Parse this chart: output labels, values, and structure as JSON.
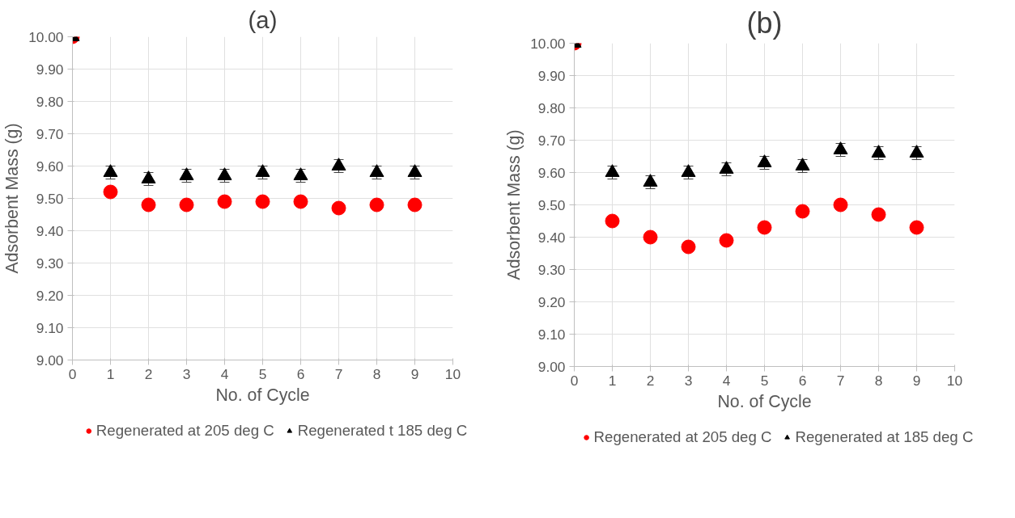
{
  "chart_data": [
    {
      "type": "scatter",
      "title": "(a)",
      "xlabel": "No. of Cycle",
      "ylabel": "Adsorbent Mass (g)",
      "x": [
        0,
        1,
        2,
        3,
        4,
        5,
        6,
        7,
        8,
        9
      ],
      "series": [
        {
          "name": "Regenerated at 205 deg C",
          "color": "#ff0000",
          "marker": "circle",
          "values": [
            10.0,
            9.52,
            9.48,
            9.48,
            9.49,
            9.49,
            9.49,
            9.47,
            9.48,
            9.48
          ]
        },
        {
          "name": "Regenerated t 185 deg C",
          "color": "#000000",
          "marker": "triangle",
          "values": [
            10.0,
            9.58,
            9.56,
            9.57,
            9.57,
            9.58,
            9.57,
            9.6,
            9.58,
            9.58
          ],
          "errors": [
            null,
            0.02,
            0.02,
            0.02,
            0.02,
            0.02,
            0.02,
            0.02,
            0.02,
            0.02
          ]
        }
      ],
      "xlim": [
        0,
        10
      ],
      "xticks": [
        0,
        1,
        2,
        3,
        4,
        5,
        6,
        7,
        8,
        9,
        10
      ],
      "ylim": [
        9.0,
        10.0
      ],
      "yticks": [
        {
          "value": 9.0,
          "label": "9.00"
        },
        {
          "value": 9.1,
          "label": "9.10"
        },
        {
          "value": 9.2,
          "label": "9.20"
        },
        {
          "value": 9.3,
          "label": "9.30"
        },
        {
          "value": 9.4,
          "label": "9.40"
        },
        {
          "value": 9.5,
          "label": "9.50"
        },
        {
          "value": 9.6,
          "label": "9.60"
        },
        {
          "value": 9.7,
          "label": "9.70"
        },
        {
          "value": 9.8,
          "label": "9.80"
        },
        {
          "value": 9.9,
          "label": "9.90"
        },
        {
          "value": 10.0,
          "label": "10.00"
        }
      ],
      "grid": true,
      "legend": "bottom"
    },
    {
      "type": "scatter",
      "title": "(b)",
      "xlabel": "No. of Cycle",
      "ylabel": "Adsorbent Mass (g)",
      "x": [
        0,
        1,
        2,
        3,
        4,
        5,
        6,
        7,
        8,
        9
      ],
      "series": [
        {
          "name": "Regenerated at 205 deg C",
          "color": "#ff0000",
          "marker": "circle",
          "values": [
            10.0,
            9.45,
            9.4,
            9.37,
            9.39,
            9.43,
            9.48,
            9.5,
            9.47,
            9.43
          ]
        },
        {
          "name": "Regenerated at 185 deg C",
          "color": "#000000",
          "marker": "triangle",
          "values": [
            10.0,
            9.6,
            9.57,
            9.6,
            9.61,
            9.63,
            9.62,
            9.67,
            9.66,
            9.66
          ],
          "errors": [
            null,
            0.02,
            0.02,
            0.02,
            0.02,
            0.02,
            0.02,
            0.02,
            0.02,
            0.02
          ]
        }
      ],
      "xlim": [
        0,
        10
      ],
      "xticks": [
        0,
        1,
        2,
        3,
        4,
        5,
        6,
        7,
        8,
        9,
        10
      ],
      "ylim": [
        9.0,
        10.0
      ],
      "yticks": [
        {
          "value": 9.0,
          "label": "9.00"
        },
        {
          "value": 9.1,
          "label": "9.10"
        },
        {
          "value": 9.2,
          "label": "9.20"
        },
        {
          "value": 9.3,
          "label": "9.30"
        },
        {
          "value": 9.4,
          "label": "9.40"
        },
        {
          "value": 9.5,
          "label": "9.50"
        },
        {
          "value": 9.6,
          "label": "9.60"
        },
        {
          "value": 9.7,
          "label": "9.70"
        },
        {
          "value": 9.8,
          "label": "9.80"
        },
        {
          "value": 9.9,
          "label": "9.90"
        },
        {
          "value": 10.0,
          "label": "10.00"
        }
      ],
      "grid": true,
      "legend": "bottom"
    }
  ]
}
